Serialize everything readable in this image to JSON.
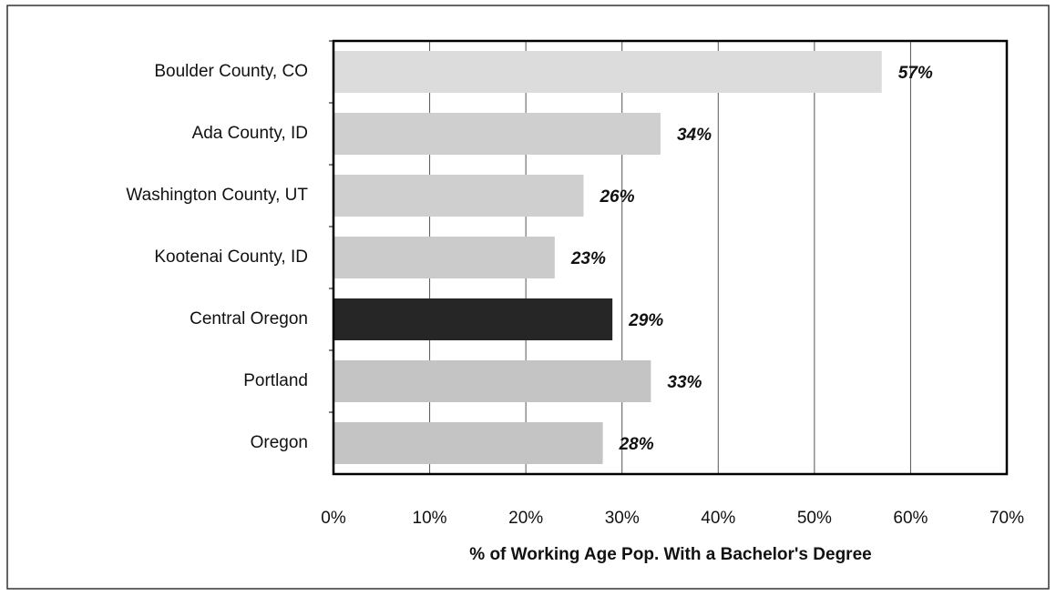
{
  "chart_data": {
    "type": "hbar",
    "xlabel": "% of Working Age Pop. With a Bachelor's Degree",
    "categories": [
      "Boulder County, CO",
      "Ada County, ID",
      "Washington County, UT",
      "Kootenai County, ID",
      "Central Oregon",
      "Portland",
      "Oregon"
    ],
    "values": [
      57,
      34,
      26,
      23,
      29,
      33,
      28
    ],
    "value_labels": [
      "57%",
      "34%",
      "26%",
      "23%",
      "29%",
      "33%",
      "28%"
    ],
    "colors": [
      "#dcdcdc",
      "#cfcfcf",
      "#cfcfcf",
      "#cbcbcb",
      "#262626",
      "#c4c4c4",
      "#c4c4c4"
    ],
    "xlim": [
      0,
      70
    ],
    "xticks": [
      {
        "value": 0,
        "label": "0%"
      },
      {
        "value": 10,
        "label": "10%"
      },
      {
        "value": 20,
        "label": "20%"
      },
      {
        "value": 30,
        "label": "30%"
      },
      {
        "value": 40,
        "label": "40%"
      },
      {
        "value": 50,
        "label": "50%"
      },
      {
        "value": 60,
        "label": "60%"
      },
      {
        "value": 70,
        "label": "70%"
      }
    ],
    "grid": true
  }
}
